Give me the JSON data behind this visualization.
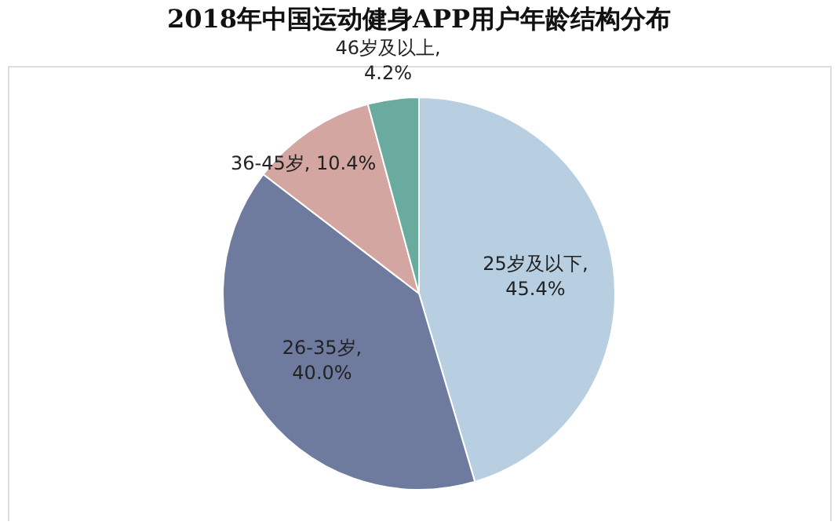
{
  "chart_data": {
    "type": "pie",
    "title": "2018年中国运动健身APP用户年龄结构分布",
    "categories": [
      "25岁及以下",
      "26-35岁",
      "36-45岁",
      "46岁及以上"
    ],
    "values": [
      45.4,
      40.0,
      10.4,
      4.2
    ],
    "value_labels": [
      ", 45.4%",
      ", 40.0%",
      ", 10.4%",
      ", 4.2%"
    ],
    "colors": [
      "#b7cfe0",
      "#6f7b9e",
      "#d3a6a1",
      "#6aab9f"
    ],
    "legend": false
  }
}
